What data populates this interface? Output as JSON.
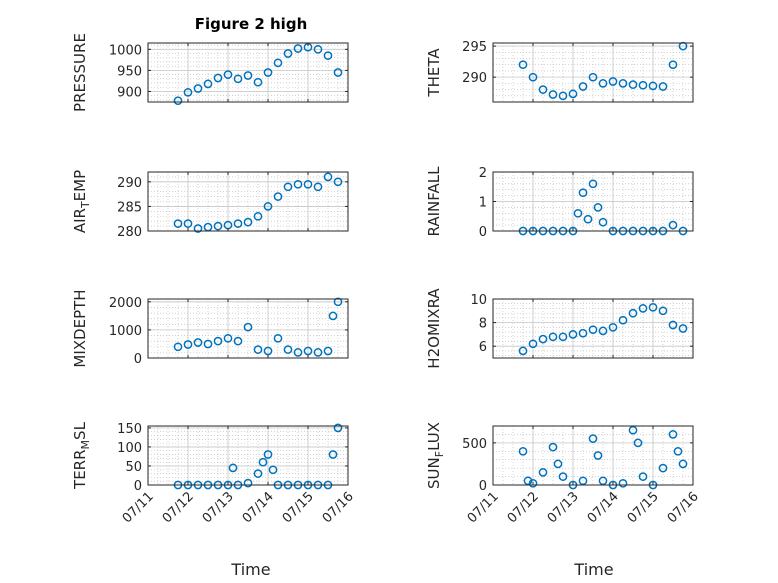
{
  "colors": {
    "marker": "#0072BD",
    "axis": "#262626",
    "grid": "#b8b8b8",
    "background": "#ffffff"
  },
  "chart_data": [
    {
      "type": "scatter",
      "title": "Figure 2 high",
      "ylabel": "PRESSURE",
      "xlabel": "",
      "xlim": [
        "07/11",
        "07/16"
      ],
      "ylim": [
        875,
        1015
      ],
      "yticks": [
        900,
        950,
        1000
      ],
      "ytick_labels": [
        "900",
        "950",
        "1000"
      ],
      "grid": true,
      "x": [
        "07/11 18:00",
        "07/12 00:00",
        "07/12 06:00",
        "07/12 12:00",
        "07/12 18:00",
        "07/13 00:00",
        "07/13 06:00",
        "07/13 12:00",
        "07/13 18:00",
        "07/14 00:00",
        "07/14 06:00",
        "07/14 12:00",
        "07/14 18:00",
        "07/15 00:00",
        "07/15 06:00",
        "07/15 12:00",
        "07/15 18:00"
      ],
      "y": [
        878,
        898,
        907,
        918,
        932,
        940,
        930,
        938,
        922,
        945,
        968,
        990,
        1002,
        1005,
        1000,
        985,
        945
      ]
    },
    {
      "type": "scatter",
      "title": "",
      "ylabel": "THETA",
      "xlabel": "",
      "xlim": [
        "07/11",
        "07/16"
      ],
      "ylim": [
        286,
        295.5
      ],
      "yticks": [
        290,
        295
      ],
      "ytick_labels": [
        "290",
        "295"
      ],
      "grid": true,
      "x": [
        "07/11 18:00",
        "07/12 00:00",
        "07/12 06:00",
        "07/12 12:00",
        "07/12 18:00",
        "07/13 00:00",
        "07/13 06:00",
        "07/13 12:00",
        "07/13 18:00",
        "07/14 00:00",
        "07/14 06:00",
        "07/14 12:00",
        "07/14 18:00",
        "07/15 00:00",
        "07/15 06:00",
        "07/15 12:00",
        "07/15 18:00"
      ],
      "y": [
        292,
        290,
        288,
        287.2,
        287,
        287.3,
        288.5,
        290,
        289,
        289.3,
        289,
        288.8,
        288.7,
        288.6,
        288.5,
        292,
        295
      ]
    },
    {
      "type": "scatter",
      "title": "",
      "ylabel": "AIR_TEMP",
      "xlabel": "",
      "xlim": [
        "07/11",
        "07/16"
      ],
      "ylim": [
        280,
        292
      ],
      "yticks": [
        280,
        285,
        290
      ],
      "ytick_labels": [
        "280",
        "285",
        "290"
      ],
      "grid": true,
      "x": [
        "07/11 18:00",
        "07/12 00:00",
        "07/12 06:00",
        "07/12 12:00",
        "07/12 18:00",
        "07/13 00:00",
        "07/13 06:00",
        "07/13 12:00",
        "07/13 18:00",
        "07/14 00:00",
        "07/14 06:00",
        "07/14 12:00",
        "07/14 18:00",
        "07/15 00:00",
        "07/15 06:00",
        "07/15 12:00",
        "07/15 18:00"
      ],
      "y": [
        281.5,
        281.5,
        280.5,
        280.8,
        281,
        281.2,
        281.5,
        281.8,
        283,
        285,
        287,
        289,
        289.5,
        289.5,
        289,
        291,
        290
      ]
    },
    {
      "type": "scatter",
      "title": "",
      "ylabel": "RAINFALL",
      "xlabel": "",
      "xlim": [
        "07/11",
        "07/16"
      ],
      "ylim": [
        0,
        2
      ],
      "yticks": [
        0,
        1,
        2
      ],
      "ytick_labels": [
        "0",
        "1",
        "2"
      ],
      "grid": true,
      "x": [
        "07/11 18:00",
        "07/12 00:00",
        "07/12 06:00",
        "07/12 12:00",
        "07/12 18:00",
        "07/13 00:00",
        "07/13 03:00",
        "07/13 06:00",
        "07/13 09:00",
        "07/13 12:00",
        "07/13 15:00",
        "07/13 18:00",
        "07/14 00:00",
        "07/14 06:00",
        "07/14 12:00",
        "07/14 18:00",
        "07/15 00:00",
        "07/15 06:00",
        "07/15 12:00",
        "07/15 18:00"
      ],
      "y": [
        0,
        0,
        0,
        0,
        0,
        0,
        0.6,
        1.3,
        0.4,
        1.6,
        0.8,
        0.3,
        0,
        0,
        0,
        0,
        0,
        0,
        0.2,
        0
      ]
    },
    {
      "type": "scatter",
      "title": "",
      "ylabel": "MIXDEPTH",
      "xlabel": "",
      "xlim": [
        "07/11",
        "07/16"
      ],
      "ylim": [
        0,
        2100
      ],
      "yticks": [
        0,
        1000,
        2000
      ],
      "ytick_labels": [
        "0",
        "1000",
        "2000"
      ],
      "grid": true,
      "x": [
        "07/11 18:00",
        "07/12 00:00",
        "07/12 06:00",
        "07/12 12:00",
        "07/12 18:00",
        "07/13 00:00",
        "07/13 06:00",
        "07/13 12:00",
        "07/13 18:00",
        "07/14 00:00",
        "07/14 06:00",
        "07/14 12:00",
        "07/14 18:00",
        "07/15 00:00",
        "07/15 06:00",
        "07/15 12:00",
        "07/15 15:00",
        "07/15 18:00"
      ],
      "y": [
        400,
        480,
        550,
        500,
        600,
        700,
        600,
        1100,
        300,
        250,
        700,
        300,
        200,
        250,
        200,
        250,
        1500,
        2000
      ]
    },
    {
      "type": "scatter",
      "title": "",
      "ylabel": "H2OMIXRA",
      "xlabel": "",
      "xlim": [
        "07/11",
        "07/16"
      ],
      "ylim": [
        5,
        10
      ],
      "yticks": [
        6,
        8,
        10
      ],
      "ytick_labels": [
        "6",
        "8",
        "10"
      ],
      "grid": true,
      "x": [
        "07/11 18:00",
        "07/12 00:00",
        "07/12 06:00",
        "07/12 12:00",
        "07/12 18:00",
        "07/13 00:00",
        "07/13 06:00",
        "07/13 12:00",
        "07/13 18:00",
        "07/14 00:00",
        "07/14 06:00",
        "07/14 12:00",
        "07/14 18:00",
        "07/15 00:00",
        "07/15 06:00",
        "07/15 12:00",
        "07/15 18:00"
      ],
      "y": [
        5.6,
        6.2,
        6.6,
        6.8,
        6.8,
        7,
        7.1,
        7.4,
        7.3,
        7.6,
        8.2,
        8.8,
        9.2,
        9.3,
        9,
        7.8,
        7.5
      ]
    },
    {
      "type": "scatter",
      "title": "",
      "ylabel": "TERR_MSL",
      "xlabel": "Time",
      "xlim": [
        "07/11",
        "07/16"
      ],
      "ylim": [
        0,
        155
      ],
      "yticks": [
        0,
        50,
        100,
        150
      ],
      "ytick_labels": [
        "0",
        "50",
        "100",
        "150"
      ],
      "xticks": [
        "07/11",
        "07/12",
        "07/13",
        "07/14",
        "07/15",
        "07/16"
      ],
      "grid": true,
      "x": [
        "07/11 18:00",
        "07/12 00:00",
        "07/12 06:00",
        "07/12 12:00",
        "07/12 18:00",
        "07/13 00:00",
        "07/13 03:00",
        "07/13 06:00",
        "07/13 12:00",
        "07/13 18:00",
        "07/13 21:00",
        "07/14 00:00",
        "07/14 03:00",
        "07/14 06:00",
        "07/14 12:00",
        "07/14 18:00",
        "07/15 00:00",
        "07/15 06:00",
        "07/15 12:00",
        "07/15 15:00",
        "07/15 18:00"
      ],
      "y": [
        0,
        0,
        0,
        0,
        0,
        0,
        45,
        0,
        5,
        30,
        60,
        80,
        40,
        0,
        0,
        0,
        0,
        0,
        0,
        80,
        150
      ]
    },
    {
      "type": "scatter",
      "title": "",
      "ylabel": "SUN_FLUX",
      "xlabel": "Time",
      "xlim": [
        "07/11",
        "07/16"
      ],
      "ylim": [
        0,
        700
      ],
      "yticks": [
        0,
        500
      ],
      "ytick_labels": [
        "0",
        "500"
      ],
      "xticks": [
        "07/11",
        "07/12",
        "07/13",
        "07/14",
        "07/15",
        "07/16"
      ],
      "grid": true,
      "x": [
        "07/11 18:00",
        "07/11 21:00",
        "07/12 00:00",
        "07/12 06:00",
        "07/12 12:00",
        "07/12 15:00",
        "07/12 18:00",
        "07/13 00:00",
        "07/13 06:00",
        "07/13 12:00",
        "07/13 15:00",
        "07/13 18:00",
        "07/14 00:00",
        "07/14 06:00",
        "07/14 12:00",
        "07/14 15:00",
        "07/14 18:00",
        "07/15 00:00",
        "07/15 06:00",
        "07/15 12:00",
        "07/15 15:00",
        "07/15 18:00"
      ],
      "y": [
        400,
        50,
        20,
        150,
        450,
        250,
        100,
        0,
        50,
        550,
        350,
        50,
        0,
        20,
        650,
        500,
        100,
        0,
        200,
        600,
        400,
        250
      ]
    }
  ],
  "xtick_labels": [
    "07/11",
    "07/12",
    "07/13",
    "07/14",
    "07/15",
    "07/16"
  ]
}
